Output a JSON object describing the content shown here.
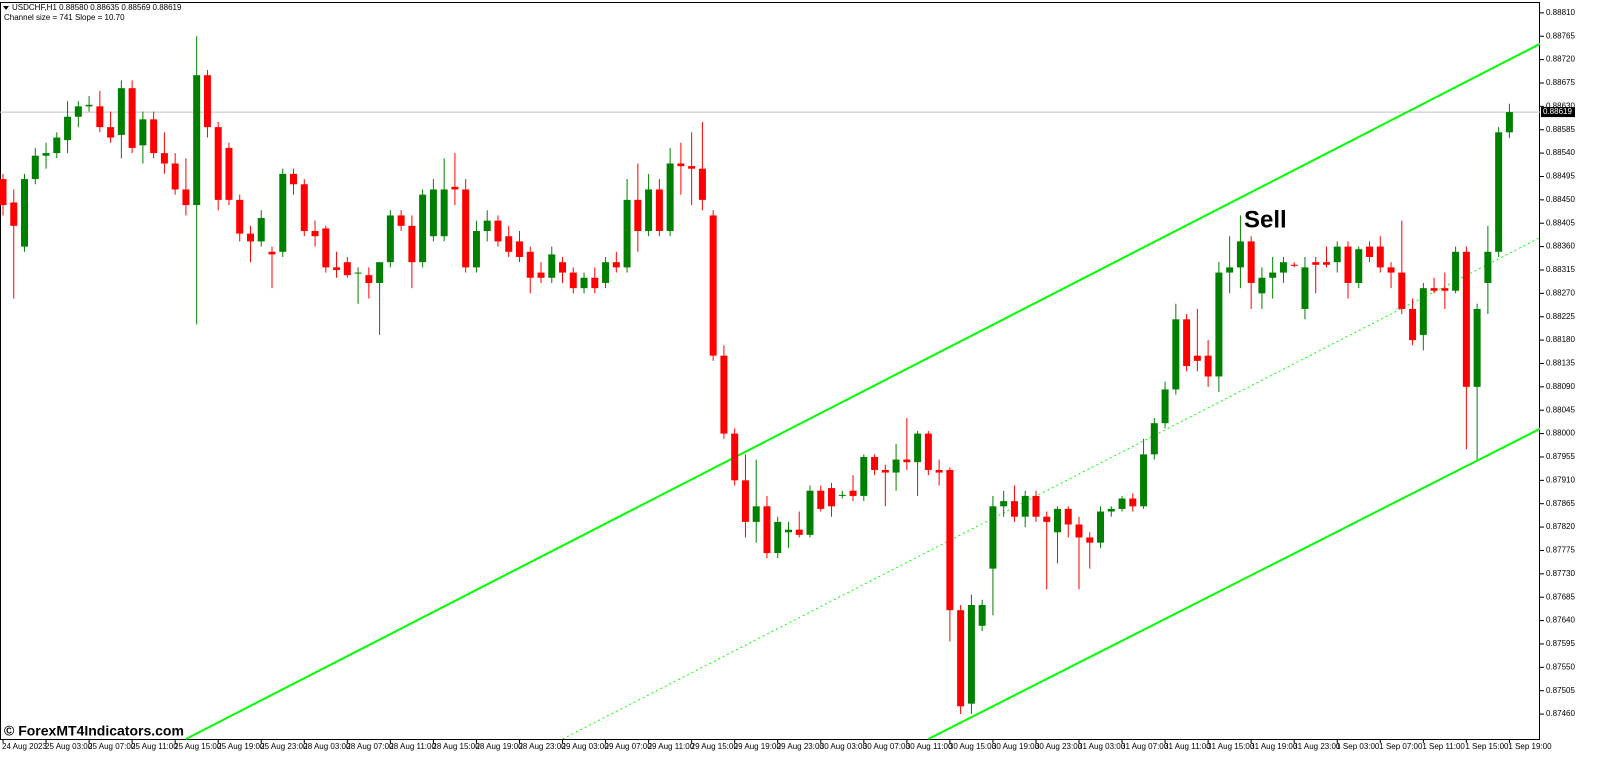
{
  "chart_data": {
    "type": "candlestick",
    "title": "USDCHF,H1  0.88580 0.88635 0.88569 0.88619",
    "subtitle": "Channel size = 741 Slope = 10.70",
    "annotation": "Sell",
    "watermark": "© ForexMT4Indicators.com",
    "up_color": "#008000",
    "down_color": "#ff0000",
    "channel_color": "#00ff00",
    "categories": [
      "24 Aug 2023",
      null,
      null,
      null,
      "25 Aug 03:00",
      null,
      null,
      null,
      "25 Aug 07:00",
      null,
      null,
      null,
      "25 Aug 11:00",
      null,
      null,
      null,
      "25 Aug 15:00",
      null,
      null,
      null,
      "25 Aug 19:00",
      null,
      null,
      null,
      "25 Aug 23:00",
      null,
      null,
      null,
      "28 Aug 03:00",
      null,
      null,
      null,
      "28 Aug 07:00",
      null,
      null,
      null,
      "28 Aug 11:00",
      null,
      null,
      null,
      "28 Aug 15:00",
      null,
      null,
      null,
      "28 Aug 19:00",
      null,
      null,
      null,
      "28 Aug 23:00",
      null,
      null,
      null,
      "29 Aug 03:00",
      null,
      null,
      null,
      "29 Aug 07:00",
      null,
      null,
      null,
      "29 Aug 11:00",
      null,
      null,
      null,
      "29 Aug 15:00",
      null,
      null,
      null,
      "29 Aug 19:00",
      null,
      null,
      null,
      "29 Aug 23:00",
      null,
      null,
      null,
      "30 Aug 03:00",
      null,
      null,
      null,
      "30 Aug 07:00",
      null,
      null,
      null,
      "30 Aug 11:00",
      null,
      null,
      null,
      "30 Aug 15:00",
      null,
      null,
      null,
      "30 Aug 19:00",
      null,
      null,
      null,
      "30 Aug 23:00",
      null,
      null,
      null,
      "31 Aug 03:00",
      null,
      null,
      null,
      "31 Aug 07:00",
      null,
      null,
      null,
      "31 Aug 11:00",
      null,
      null,
      null,
      "31 Aug 15:00",
      null,
      null,
      null,
      "31 Aug 19:00",
      null,
      null,
      null,
      "31 Aug 23:00",
      null,
      null,
      null,
      "1 Sep 03:00",
      null,
      null,
      null,
      "1 Sep 07:00",
      null,
      null,
      null,
      "1 Sep 11:00",
      null,
      null,
      null,
      "1 Sep 15:00",
      null,
      null,
      null,
      "1 Sep 19:00"
    ],
    "open": [
      0.8849,
      0.88445,
      0.8836,
      0.8849,
      0.88535,
      0.8854,
      0.88565,
      0.8861,
      0.8863,
      0.8863,
      0.8859,
      0.88575,
      0.88665,
      0.88555,
      0.88605,
      0.8854,
      0.8852,
      0.8847,
      0.8844,
      0.8869,
      0.8859,
      0.8855,
      0.8845,
      0.88385,
      0.8837,
      0.8835,
      0.8835,
      0.885,
      0.8848,
      0.8839,
      0.88395,
      0.8832,
      0.8833,
      0.8831,
      0.88305,
      0.8829,
      0.8833,
      0.8842,
      0.884,
      0.8833,
      0.8838,
      0.8838,
      0.88475,
      0.8847,
      0.8832,
      0.8839,
      0.8841,
      0.8838,
      0.8837,
      0.8835,
      0.8831,
      0.883,
      0.8833,
      0.8831,
      0.8828,
      0.883,
      0.8829,
      0.8833,
      0.8832,
      0.8845,
      0.8839,
      0.8847,
      0.8839,
      0.8852,
      0.88515,
      0.8851,
      0.8842,
      0.8815,
      0.88,
      0.8791,
      0.8783,
      0.8786,
      0.8777,
      0.8781,
      0.87815,
      0.87805,
      0.8789,
      0.87895,
      0.8788,
      0.8789,
      0.8788,
      0.87955,
      0.8793,
      0.87925,
      0.8795,
      0.87945,
      0.88,
      0.8793,
      0.8793,
      0.8766,
      0.8748,
      0.8763,
      0.8774,
      0.8786,
      0.8787,
      0.8784,
      0.8788,
      0.8784,
      0.8781,
      0.87855,
      0.87825,
      0.878,
      0.8779,
      0.8785,
      0.87855,
      0.87875,
      0.8786,
      0.8796,
      0.8802,
      0.88085,
      0.8822,
      0.8815,
      0.8815,
      0.8811,
      0.8831,
      0.8832,
      0.8837,
      0.8827,
      0.883,
      0.8831,
      0.88325,
      0.8824,
      0.8833,
      0.8833,
      0.8833,
      0.8836,
      0.8829,
      0.8836,
      0.8836,
      0.8832,
      0.8831,
      0.8824,
      0.8819,
      0.8828,
      0.8828,
      0.88275,
      0.8835,
      0.8809,
      0.8829,
      0.8835,
      0.8858
    ],
    "high": [
      0.885,
      0.8847,
      0.885,
      0.8855,
      0.8856,
      0.8858,
      0.8864,
      0.8864,
      0.8865,
      0.8866,
      0.8862,
      0.8868,
      0.8868,
      0.8862,
      0.8862,
      0.8858,
      0.8854,
      0.8853,
      0.88765,
      0.887,
      0.886,
      0.8856,
      0.8846,
      0.884,
      0.8843,
      0.8836,
      0.8851,
      0.8851,
      0.8849,
      0.8841,
      0.884,
      0.8835,
      0.8834,
      0.8832,
      0.8832,
      0.8833,
      0.8843,
      0.8843,
      0.8842,
      0.8847,
      0.8849,
      0.8853,
      0.8854,
      0.8849,
      0.8841,
      0.8843,
      0.8842,
      0.884,
      0.8839,
      0.8836,
      0.8833,
      0.8836,
      0.8834,
      0.8832,
      0.8831,
      0.8832,
      0.8834,
      0.8835,
      0.8849,
      0.8852,
      0.885,
      0.8849,
      0.8855,
      0.8856,
      0.8858,
      0.886,
      0.8843,
      0.8817,
      0.8801,
      0.8796,
      0.8795,
      0.8788,
      0.8784,
      0.8783,
      0.8785,
      0.879,
      0.879,
      0.87905,
      0.8789,
      0.8792,
      0.8796,
      0.8796,
      0.8794,
      0.8798,
      0.8803,
      0.88005,
      0.88005,
      0.8795,
      0.87935,
      0.8767,
      0.8769,
      0.8768,
      0.8788,
      0.8789,
      0.879,
      0.8789,
      0.8789,
      0.8785,
      0.8786,
      0.8786,
      0.8784,
      0.8781,
      0.8786,
      0.8786,
      0.8788,
      0.87885,
      0.8799,
      0.8803,
      0.881,
      0.8825,
      0.8823,
      0.8824,
      0.8818,
      0.8833,
      0.8838,
      0.8842,
      0.8838,
      0.8832,
      0.8834,
      0.8834,
      0.8833,
      0.8834,
      0.8834,
      0.8836,
      0.8837,
      0.8837,
      0.8836,
      0.8837,
      0.8838,
      0.8833,
      0.8841,
      0.8826,
      0.8829,
      0.883,
      0.8831,
      0.8836,
      0.8836,
      0.8825,
      0.884,
      0.8859,
      0.88635
    ],
    "low": [
      0.8842,
      0.8826,
      0.8835,
      0.8848,
      0.8851,
      0.8853,
      0.8854,
      0.8859,
      0.8862,
      0.8858,
      0.8856,
      0.8853,
      0.8854,
      0.8852,
      0.8853,
      0.885,
      0.8846,
      0.8842,
      0.8821,
      0.8857,
      0.8843,
      0.8844,
      0.8837,
      0.8833,
      0.8836,
      0.8828,
      0.8834,
      0.8846,
      0.8838,
      0.8836,
      0.8831,
      0.883,
      0.883,
      0.8825,
      0.8826,
      0.8819,
      0.8832,
      0.8839,
      0.8828,
      0.8832,
      0.8837,
      0.8837,
      0.8844,
      0.8831,
      0.8831,
      0.8837,
      0.8836,
      0.8834,
      0.8833,
      0.8827,
      0.8829,
      0.8829,
      0.8829,
      0.8827,
      0.8827,
      0.8827,
      0.8828,
      0.8831,
      0.8831,
      0.8835,
      0.8838,
      0.8838,
      0.8838,
      0.8846,
      0.8844,
      0.8843,
      0.8814,
      0.8799,
      0.879,
      0.878,
      0.8779,
      0.8776,
      0.8776,
      0.8778,
      0.878,
      0.878,
      0.8785,
      0.8784,
      0.87875,
      0.8787,
      0.8787,
      0.8792,
      0.8786,
      0.8789,
      0.8793,
      0.8788,
      0.8792,
      0.879,
      0.876,
      0.8746,
      0.8746,
      0.8762,
      0.8765,
      0.8784,
      0.8783,
      0.8782,
      0.8783,
      0.877,
      0.8775,
      0.878,
      0.877,
      0.8774,
      0.8778,
      0.8784,
      0.8785,
      0.8785,
      0.87855,
      0.8795,
      0.8801,
      0.88075,
      0.8812,
      0.8812,
      0.8809,
      0.8808,
      0.8827,
      0.8828,
      0.8824,
      0.8824,
      0.8826,
      0.8829,
      0.8832,
      0.8822,
      0.8827,
      0.8832,
      0.8831,
      0.8826,
      0.8828,
      0.8833,
      0.8831,
      0.8828,
      0.8823,
      0.8817,
      0.8816,
      0.8827,
      0.8824,
      0.8827,
      0.8797,
      0.8795,
      0.8823,
      0.8834,
      0.88569
    ],
    "close": [
      0.8844,
      0.884,
      0.8849,
      0.88535,
      0.8854,
      0.8857,
      0.8861,
      0.8863,
      0.88633,
      0.8859,
      0.8857,
      0.88665,
      0.8855,
      0.88605,
      0.8854,
      0.8852,
      0.8847,
      0.8844,
      0.8869,
      0.8859,
      0.8845,
      0.8845,
      0.88385,
      0.8837,
      0.88415,
      0.88345,
      0.885,
      0.8848,
      0.8839,
      0.8838,
      0.8832,
      0.88315,
      0.88305,
      0.8831,
      0.8829,
      0.8833,
      0.8842,
      0.884,
      0.8833,
      0.8846,
      0.8847,
      0.8847,
      0.8847,
      0.8832,
      0.8839,
      0.8841,
      0.8837,
      0.8835,
      0.8834,
      0.883,
      0.883,
      0.88345,
      0.8831,
      0.8828,
      0.883,
      0.8828,
      0.8833,
      0.8832,
      0.8845,
      0.8839,
      0.8847,
      0.8839,
      0.8852,
      0.88515,
      0.8851,
      0.8845,
      0.8815,
      0.88,
      0.8791,
      0.8783,
      0.8786,
      0.8777,
      0.8783,
      0.87815,
      0.87805,
      0.8789,
      0.87855,
      0.8786,
      0.87882,
      0.8788,
      0.87955,
      0.8793,
      0.87925,
      0.8795,
      0.87945,
      0.88,
      0.8793,
      0.87925,
      0.8766,
      0.87475,
      0.8767,
      0.8767,
      0.8786,
      0.8787,
      0.8784,
      0.8788,
      0.8784,
      0.8783,
      0.87855,
      0.87825,
      0.878,
      0.8779,
      0.8785,
      0.87855,
      0.87875,
      0.8786,
      0.8796,
      0.8802,
      0.88085,
      0.8822,
      0.8813,
      0.8814,
      0.8811,
      0.8831,
      0.8832,
      0.8837,
      0.8829,
      0.883,
      0.8831,
      0.8833,
      0.88323,
      0.8832,
      0.88325,
      0.88325,
      0.8836,
      0.8829,
      0.88355,
      0.8834,
      0.8832,
      0.8831,
      0.8824,
      0.8818,
      0.8828,
      0.88275,
      0.88275,
      0.8835,
      0.8809,
      0.8824,
      0.8835,
      0.8858,
      0.88619
    ],
    "channel": {
      "upper": {
        "x": [
          17,
          143
        ],
        "y": [
          0.87412,
          0.88752
        ]
      },
      "middle": {
        "x": [
          52,
          143
        ],
        "y": [
          0.87412,
          0.88379
        ]
      },
      "lower": {
        "x": [
          86,
          143
        ],
        "y": [
          0.87412,
          0.88011
        ]
      }
    },
    "current_price": {
      "value": 0.88619,
      "label": "0.88619"
    },
    "ylim": [
      0.87412,
      0.88829
    ],
    "yticks": [
      {
        "value": 0.8746,
        "label": "0.87460"
      },
      {
        "value": 0.87505,
        "label": "0.87505"
      },
      {
        "value": 0.8755,
        "label": "0.87550"
      },
      {
        "value": 0.87595,
        "label": "0.87595"
      },
      {
        "value": 0.8764,
        "label": "0.87640"
      },
      {
        "value": 0.87685,
        "label": "0.87685"
      },
      {
        "value": 0.8773,
        "label": "0.87730"
      },
      {
        "value": 0.87775,
        "label": "0.87775"
      },
      {
        "value": 0.8782,
        "label": "0.87820"
      },
      {
        "value": 0.87865,
        "label": "0.87865"
      },
      {
        "value": 0.8791,
        "label": "0.87910"
      },
      {
        "value": 0.87955,
        "label": "0.87955"
      },
      {
        "value": 0.88,
        "label": "0.88000"
      },
      {
        "value": 0.88045,
        "label": "0.88045"
      },
      {
        "value": 0.8809,
        "label": "0.88090"
      },
      {
        "value": 0.88135,
        "label": "0.88135"
      },
      {
        "value": 0.8818,
        "label": "0.88180"
      },
      {
        "value": 0.88225,
        "label": "0.88225"
      },
      {
        "value": 0.8827,
        "label": "0.88270"
      },
      {
        "value": 0.88315,
        "label": "0.88315"
      },
      {
        "value": 0.8836,
        "label": "0.88360"
      },
      {
        "value": 0.88405,
        "label": "0.88405"
      },
      {
        "value": 0.8845,
        "label": "0.88450"
      },
      {
        "value": 0.88495,
        "label": "0.88495"
      },
      {
        "value": 0.8854,
        "label": "0.88540"
      },
      {
        "value": 0.88585,
        "label": "0.88585"
      },
      {
        "value": 0.8863,
        "label": "0.88630"
      },
      {
        "value": 0.88675,
        "label": "0.88675"
      },
      {
        "value": 0.8872,
        "label": "0.88720"
      },
      {
        "value": 0.88765,
        "label": "0.88765"
      },
      {
        "value": 0.8881,
        "label": "0.88810"
      }
    ],
    "grid": false
  }
}
